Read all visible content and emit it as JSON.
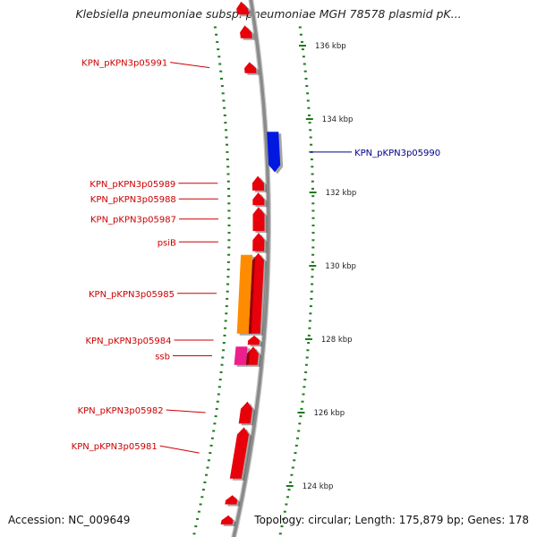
{
  "title": "Klebsiella pneumoniae subsp. pneumoniae MGH 78578 plasmid pK...",
  "accession": "Accession: NC_009649",
  "summary": "Topology: circular; Length: 175,879 bp; Genes: 178",
  "colors": {
    "backbone": "#8a8a8a",
    "tick": "#1e7a1e",
    "forward_gene": "#e8000b",
    "reverse_gene": "#0018e0",
    "orange_gene": "#ff8c00",
    "pink_gene": "#ee1e8c",
    "forward_label": "#cc0000",
    "reverse_label": "#00008b"
  },
  "kbp_ticks": [
    {
      "kbp": 136,
      "label": "136 kbp"
    },
    {
      "kbp": 134,
      "label": "134 kbp"
    },
    {
      "kbp": 132,
      "label": "132 kbp"
    },
    {
      "kbp": 130,
      "label": "130 kbp"
    },
    {
      "kbp": 128,
      "label": "128 kbp"
    },
    {
      "kbp": 126,
      "label": "126 kbp"
    },
    {
      "kbp": 124,
      "label": "124 kbp"
    }
  ],
  "genes": [
    {
      "start": 136.85,
      "end": 137.2,
      "strand": "forward",
      "color": "forward_gene"
    },
    {
      "start": 136.2,
      "end": 136.55,
      "strand": "forward",
      "color": "forward_gene"
    },
    {
      "start": 135.25,
      "end": 135.55,
      "strand": "forward",
      "color": "forward_gene",
      "label": "KPN_pKPN3p05991"
    },
    {
      "start": 132.55,
      "end": 133.65,
      "strand": "reverse",
      "color": "reverse_gene",
      "label": "KPN_pKPN3p05990"
    },
    {
      "start": 132.05,
      "end": 132.45,
      "strand": "forward",
      "color": "forward_gene",
      "label": "KPN_pKPN3p05989"
    },
    {
      "start": 131.65,
      "end": 132.0,
      "strand": "forward",
      "color": "forward_gene",
      "label": "KPN_pKPN3p05988"
    },
    {
      "start": 130.95,
      "end": 131.6,
      "strand": "forward",
      "color": "forward_gene",
      "label": "KPN_pKPN3p05987"
    },
    {
      "start": 130.4,
      "end": 130.9,
      "strand": "forward",
      "color": "forward_gene",
      "label": "psiB"
    },
    {
      "start": 128.15,
      "end": 130.35,
      "strand": "forward",
      "color": "forward_gene",
      "label": "KPN_pKPN3p05985"
    },
    {
      "start": 128.15,
      "end": 130.3,
      "strand": "forward",
      "color": "orange_gene",
      "lane": "outer"
    },
    {
      "start": 127.85,
      "end": 128.1,
      "strand": "forward",
      "color": "forward_gene",
      "label": "KPN_pKPN3p05984"
    },
    {
      "start": 127.3,
      "end": 127.8,
      "strand": "forward",
      "color": "forward_gene",
      "label": "ssb"
    },
    {
      "start": 127.3,
      "end": 127.8,
      "strand": "forward",
      "color": "pink_gene",
      "lane": "outer"
    },
    {
      "start": 125.7,
      "end": 126.3,
      "strand": "forward",
      "color": "forward_gene",
      "label": "KPN_pKPN3p05982"
    },
    {
      "start": 124.2,
      "end": 125.6,
      "strand": "forward",
      "color": "forward_gene",
      "label": "KPN_pKPN3p05981"
    },
    {
      "start": 123.5,
      "end": 123.75,
      "strand": "forward",
      "color": "forward_gene"
    },
    {
      "start": 122.95,
      "end": 123.2,
      "strand": "forward",
      "color": "forward_gene"
    }
  ]
}
